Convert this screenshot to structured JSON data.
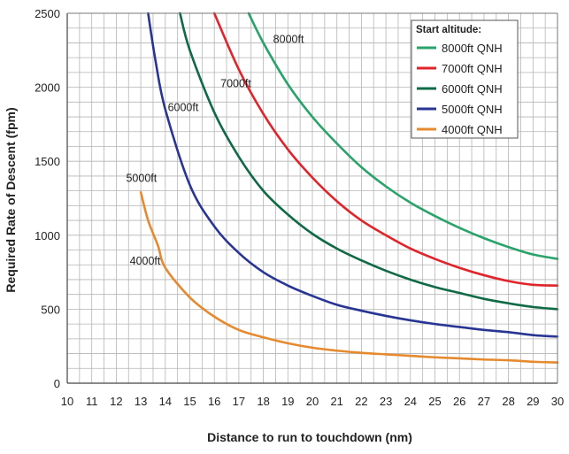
{
  "chart_data": {
    "type": "line",
    "title": "",
    "xlabel": "Distance to run to touchdown (nm)",
    "ylabel": "Required Rate of Descent (fpm)",
    "xlim": [
      10,
      30
    ],
    "ylim": [
      0,
      2500
    ],
    "x_ticks": [
      "10",
      "11",
      "12",
      "13",
      "14",
      "15",
      "16",
      "17",
      "18",
      "19",
      "20",
      "21",
      "22",
      "23",
      "24",
      "25",
      "26",
      "27",
      "28",
      "29",
      "30"
    ],
    "y_ticks": [
      "0",
      "500",
      "1000",
      "1500",
      "2000",
      "2500"
    ],
    "grid": true,
    "legend": {
      "title": "Start altitude:",
      "position": "top-right"
    },
    "series": [
      {
        "name": "8000ft QNH",
        "label": "8000ft",
        "color": "#2aa36b",
        "x": [
          17.4,
          18,
          19,
          20,
          21,
          22,
          23,
          24,
          25,
          26,
          27,
          28,
          29,
          30
        ],
        "y": [
          2500,
          2300,
          2020,
          1800,
          1620,
          1460,
          1330,
          1220,
          1130,
          1050,
          980,
          920,
          870,
          840
        ]
      },
      {
        "name": "7000ft QNH",
        "label": "7000ft",
        "color": "#e0242b",
        "x": [
          16.0,
          17,
          18,
          19,
          20,
          21,
          22,
          23,
          24,
          25,
          26,
          27,
          28,
          29,
          30
        ],
        "y": [
          2500,
          2120,
          1820,
          1580,
          1390,
          1230,
          1100,
          1000,
          910,
          840,
          780,
          730,
          690,
          665,
          660
        ]
      },
      {
        "name": "6000ft QNH",
        "label": "6000ft",
        "color": "#0f6a45",
        "x": [
          14.6,
          15,
          16,
          17,
          18,
          19,
          20,
          21,
          22,
          23,
          24,
          25,
          26,
          27,
          28,
          29,
          30
        ],
        "y": [
          2500,
          2250,
          1830,
          1530,
          1300,
          1140,
          1010,
          910,
          830,
          760,
          700,
          650,
          610,
          570,
          540,
          515,
          500
        ]
      },
      {
        "name": "5000ft QNH",
        "label": "5000ft",
        "color": "#283593",
        "x": [
          13.3,
          13.6,
          14,
          15,
          16,
          17,
          18,
          19,
          20,
          21,
          22,
          23,
          24,
          25,
          26,
          27,
          28,
          29,
          30
        ],
        "y": [
          2500,
          2180,
          1850,
          1340,
          1060,
          880,
          750,
          660,
          590,
          530,
          490,
          455,
          425,
          400,
          380,
          360,
          345,
          325,
          315
        ]
      },
      {
        "name": "4000ft QNH",
        "label": "4000ft",
        "color": "#e58a2e",
        "x": [
          13.0,
          13.3,
          13.7,
          14,
          15,
          16,
          17,
          18,
          19,
          20,
          21,
          22,
          23,
          24,
          25,
          26,
          27,
          28,
          29,
          30
        ],
        "y": [
          1290,
          1100,
          930,
          780,
          580,
          450,
          360,
          310,
          270,
          240,
          220,
          205,
          195,
          185,
          175,
          168,
          160,
          155,
          145,
          140
        ]
      }
    ]
  }
}
